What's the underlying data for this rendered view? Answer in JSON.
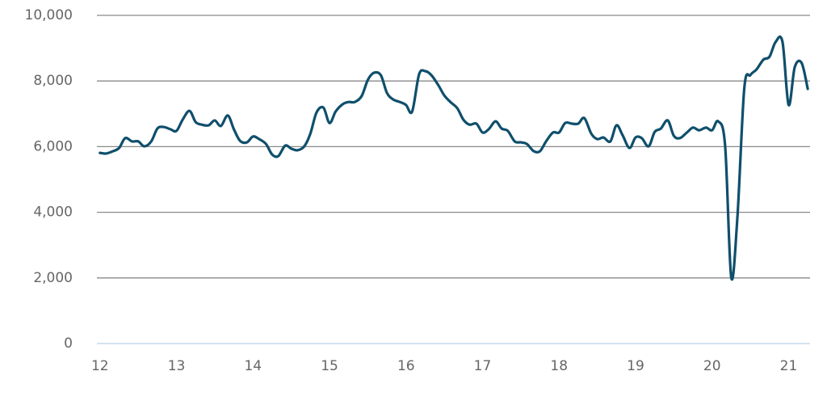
{
  "chart_data": {
    "type": "line",
    "x": [
      12,
      12.08,
      12.17,
      12.25,
      12.33,
      12.42,
      12.5,
      12.58,
      12.67,
      12.75,
      12.83,
      12.92,
      13,
      13.08,
      13.17,
      13.25,
      13.33,
      13.42,
      13.5,
      13.58,
      13.67,
      13.75,
      13.83,
      13.92,
      14,
      14.08,
      14.17,
      14.25,
      14.33,
      14.42,
      14.5,
      14.58,
      14.67,
      14.75,
      14.83,
      14.92,
      15,
      15.08,
      15.17,
      15.25,
      15.33,
      15.42,
      15.5,
      15.58,
      15.67,
      15.75,
      15.83,
      15.92,
      16,
      16.08,
      16.17,
      16.25,
      16.33,
      16.42,
      16.5,
      16.58,
      16.67,
      16.75,
      16.83,
      16.92,
      17,
      17.08,
      17.17,
      17.25,
      17.33,
      17.42,
      17.5,
      17.58,
      17.67,
      17.75,
      17.83,
      17.92,
      18,
      18.08,
      18.17,
      18.25,
      18.33,
      18.42,
      18.5,
      18.58,
      18.67,
      18.75,
      18.83,
      18.92,
      19,
      19.08,
      19.17,
      19.25,
      19.33,
      19.42,
      19.5,
      19.58,
      19.67,
      19.75,
      19.83,
      19.92,
      20,
      20.08,
      20.17,
      20.25,
      20.33,
      20.42,
      20.5,
      20.58,
      20.67,
      20.75,
      20.83,
      20.92,
      21,
      21.08,
      21.17,
      21.25
    ],
    "series": [
      {
        "color": "#0f4f6c",
        "values": [
          5810,
          5790,
          5860,
          5960,
          6260,
          6160,
          6160,
          6010,
          6160,
          6550,
          6600,
          6530,
          6480,
          6820,
          7090,
          6750,
          6670,
          6650,
          6800,
          6630,
          6950,
          6530,
          6180,
          6130,
          6310,
          6230,
          6080,
          5760,
          5710,
          6030,
          5940,
          5890,
          6010,
          6400,
          7040,
          7190,
          6720,
          7070,
          7290,
          7360,
          7360,
          7540,
          8030,
          8250,
          8180,
          7640,
          7440,
          7360,
          7270,
          7070,
          8200,
          8300,
          8180,
          7880,
          7560,
          7360,
          7170,
          6820,
          6670,
          6700,
          6430,
          6530,
          6770,
          6550,
          6480,
          6160,
          6130,
          6080,
          5860,
          5860,
          6160,
          6430,
          6430,
          6720,
          6700,
          6700,
          6870,
          6400,
          6230,
          6280,
          6160,
          6650,
          6350,
          5960,
          6280,
          6260,
          6010,
          6450,
          6550,
          6800,
          6330,
          6260,
          6430,
          6580,
          6500,
          6580,
          6500,
          6770,
          6030,
          2020,
          3820,
          7760,
          8180,
          8350,
          8650,
          8740,
          9190,
          9190,
          7270,
          8420,
          8550,
          7760
        ]
      }
    ],
    "xlim": [
      11.96,
      21.28
    ],
    "xticks": [
      12,
      13,
      14,
      15,
      16,
      17,
      18,
      19,
      20,
      21
    ],
    "ylim": [
      0,
      10000
    ],
    "yticks": [
      0,
      {
        "value": 2000,
        "label": "2,000"
      },
      {
        "value": 4000,
        "label": "4,000"
      },
      {
        "value": 6000,
        "label": "6,000"
      },
      {
        "value": 8000,
        "label": "8,000"
      },
      {
        "value": 10000,
        "label": "10,000"
      }
    ],
    "grid": true
  }
}
